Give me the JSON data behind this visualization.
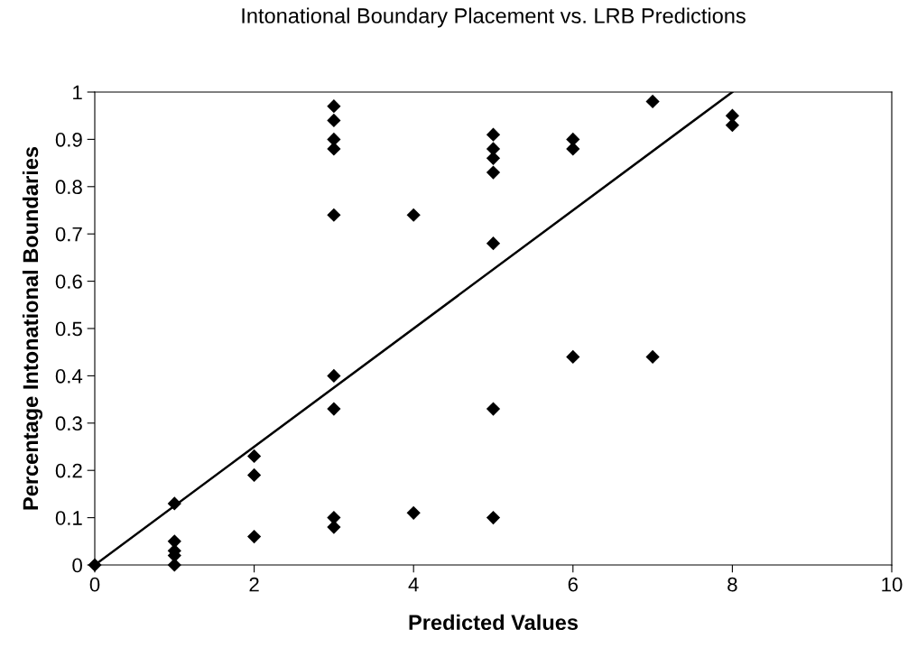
{
  "chart_data": {
    "type": "scatter",
    "title": "Intonational Boundary Placement vs. LRB Predictions",
    "xlabel": "Predicted Values",
    "ylabel": "Percentage Intonational Boundaries",
    "xlim": [
      0,
      10
    ],
    "xticks": [
      0,
      2,
      4,
      6,
      8,
      10
    ],
    "ylim": [
      0,
      1
    ],
    "yticks": [
      0,
      0.1,
      0.2,
      0.3,
      0.4,
      0.5,
      0.6,
      0.7,
      0.8,
      0.9,
      1
    ],
    "grid": false,
    "legend": false,
    "series": [
      {
        "color": "#000000",
        "marker": "diamond",
        "x": [
          0,
          1,
          1,
          1,
          1,
          1,
          2,
          2,
          2,
          3,
          3,
          3,
          3,
          3,
          3,
          3,
          3,
          3,
          4,
          4,
          5,
          5,
          5,
          5,
          5,
          5,
          5,
          6,
          6,
          6,
          7,
          7,
          8,
          8
        ],
        "values": [
          0,
          0.13,
          0.05,
          0.03,
          0.02,
          0,
          0.23,
          0.19,
          0.06,
          0.97,
          0.94,
          0.9,
          0.88,
          0.74,
          0.4,
          0.33,
          0.1,
          0.08,
          0.74,
          0.11,
          0.91,
          0.88,
          0.86,
          0.83,
          0.68,
          0.33,
          0.1,
          0.9,
          0.88,
          0.44,
          0.98,
          0.44,
          0.95,
          0.93
        ]
      },
      {
        "type": "line",
        "color": "#000000",
        "marker": "none",
        "line_style": "solid",
        "x": [
          0,
          8
        ],
        "values": [
          0,
          1
        ]
      }
    ]
  }
}
